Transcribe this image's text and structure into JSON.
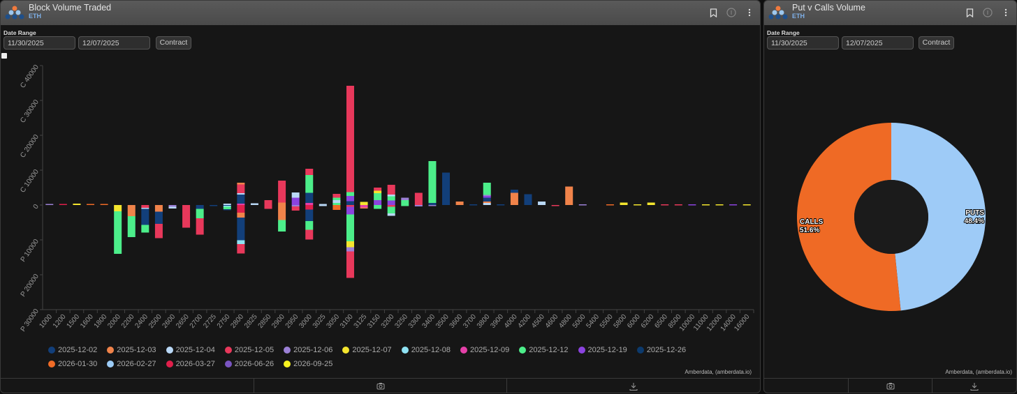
{
  "left_panel": {
    "title": "Block Volume Traded",
    "subtitle": "ETH",
    "date_range_label": "Date Range",
    "start_date": "11/30/2025",
    "end_date": "12/07/2025",
    "contract_button": "Contract",
    "credit": "Amberdata, (amberdata.io)",
    "icons": [
      "bookmark-icon",
      "info-icon",
      "more-vertical-icon",
      "camera-icon",
      "download-icon"
    ]
  },
  "right_panel": {
    "title": "Put v Calls Volume",
    "subtitle": "ETH",
    "date_range_label": "Date Range",
    "start_date": "11/30/2025",
    "end_date": "12/07/2025",
    "contract_button": "Contract",
    "credit": "Amberdata, (amberdata.io)"
  },
  "chart_data": [
    {
      "type": "bar",
      "stacked": true,
      "diverging": true,
      "ylim": [
        -30000,
        40000
      ],
      "yticks": [
        {
          "value": 40000,
          "label": "C 40000"
        },
        {
          "value": 30000,
          "label": "C 30000"
        },
        {
          "value": 20000,
          "label": "C 20000"
        },
        {
          "value": 10000,
          "label": "C 10000"
        },
        {
          "value": 0,
          "label": "0"
        },
        {
          "value": -10000,
          "label": "P 10000"
        },
        {
          "value": -20000,
          "label": "P 20000"
        },
        {
          "value": -30000,
          "label": "P 30000"
        }
      ],
      "categories": [
        "1000",
        "1200",
        "1500",
        "1600",
        "1800",
        "2000",
        "2200",
        "2400",
        "2500",
        "2600",
        "2650",
        "2700",
        "2725",
        "2750",
        "2800",
        "2825",
        "2850",
        "2900",
        "2950",
        "3000",
        "3025",
        "3050",
        "3100",
        "3125",
        "3150",
        "3200",
        "3250",
        "3300",
        "3400",
        "3500",
        "3600",
        "3700",
        "3800",
        "3900",
        "4000",
        "4200",
        "4500",
        "4600",
        "4800",
        "5000",
        "5400",
        "5500",
        "5800",
        "6000",
        "6200",
        "6500",
        "8500",
        "10000",
        "11000",
        "12000",
        "14000",
        "16000"
      ],
      "series": [
        {
          "name": "2025-12-02",
          "color": "#123f7a"
        },
        {
          "name": "2025-12-03",
          "color": "#f0834a"
        },
        {
          "name": "2025-12-04",
          "color": "#b9d8f6"
        },
        {
          "name": "2025-12-05",
          "color": "#e8385b"
        },
        {
          "name": "2025-12-06",
          "color": "#9b80d6"
        },
        {
          "name": "2025-12-07",
          "color": "#f4e52e"
        },
        {
          "name": "2025-12-08",
          "color": "#8fe2f3"
        },
        {
          "name": "2025-12-09",
          "color": "#e540a8"
        },
        {
          "name": "2025-12-12",
          "color": "#4cee8a"
        },
        {
          "name": "2025-12-19",
          "color": "#8b43df"
        },
        {
          "name": "2025-12-26",
          "color": "#0c3a6d"
        },
        {
          "name": "2026-01-30",
          "color": "#f06b26"
        },
        {
          "name": "2026-02-27",
          "color": "#9ccbf6"
        },
        {
          "name": "2026-03-27",
          "color": "#e01f4b"
        },
        {
          "name": "2026-06-26",
          "color": "#7a55c2"
        },
        {
          "name": "2026-09-25",
          "color": "#f7f21f"
        }
      ],
      "calls": {
        "1000": [
          [
            4,
            300
          ]
        ],
        "1200": [
          [
            13,
            300
          ]
        ],
        "1500": [
          [
            5,
            400
          ]
        ],
        "1600": [
          [
            11,
            300
          ]
        ],
        "1800": [
          [
            11,
            300
          ]
        ],
        "2750": [
          [
            2,
            400
          ]
        ],
        "2800": [
          [
            7,
            400
          ],
          [
            0,
            2600
          ],
          [
            2,
            400
          ],
          [
            3,
            2500
          ],
          [
            1,
            500
          ]
        ],
        "2825": [
          [
            2,
            500
          ]
        ],
        "2850": [
          [
            3,
            1400
          ]
        ],
        "2900": [
          [
            1,
            700
          ],
          [
            3,
            6300
          ]
        ],
        "2950": [
          [
            9,
            2100
          ],
          [
            2,
            1500
          ]
        ],
        "3000": [
          [
            7,
            600
          ],
          [
            0,
            2900
          ],
          [
            8,
            5100
          ],
          [
            3,
            1800
          ]
        ],
        "3025": [
          [
            2,
            300
          ]
        ],
        "3050": [
          [
            8,
            600
          ],
          [
            2,
            800
          ],
          [
            8,
            700
          ],
          [
            3,
            1100
          ]
        ],
        "3100": [
          [
            0,
            1100
          ],
          [
            9,
            1500
          ],
          [
            8,
            1100
          ],
          [
            3,
            30500
          ]
        ],
        "3125": [
          [
            5,
            900
          ]
        ],
        "3150": [
          [
            9,
            1400
          ],
          [
            8,
            2000
          ],
          [
            5,
            700
          ],
          [
            3,
            900
          ]
        ],
        "3200": [
          [
            9,
            1300
          ],
          [
            8,
            1200
          ],
          [
            2,
            500
          ],
          [
            3,
            2800
          ]
        ],
        "3250": [
          [
            8,
            1400
          ],
          [
            4,
            700
          ]
        ],
        "3300": [
          [
            3,
            3500
          ]
        ],
        "3400": [
          [
            0,
            600
          ],
          [
            8,
            12000
          ]
        ],
        "3500": [
          [
            0,
            9300
          ]
        ],
        "3600": [
          [
            1,
            1000
          ]
        ],
        "3700": [
          [
            0,
            200
          ]
        ],
        "3800": [
          [
            2,
            600
          ],
          [
            1,
            400
          ],
          [
            0,
            1100
          ],
          [
            9,
            500
          ],
          [
            4,
            300
          ],
          [
            8,
            3500
          ]
        ],
        "3900": [
          [
            0,
            200
          ]
        ],
        "4000": [
          [
            1,
            3500
          ],
          [
            0,
            900
          ]
        ],
        "4200": [
          [
            0,
            3100
          ]
        ],
        "4500": [
          [
            2,
            1000
          ]
        ],
        "4800": [
          [
            1,
            5300
          ]
        ],
        "5000": [
          [
            4,
            200
          ]
        ],
        "5500": [
          [
            11,
            200
          ]
        ],
        "5800": [
          [
            5,
            700
          ]
        ],
        "6000": [
          [
            5,
            200
          ]
        ],
        "6200": [
          [
            5,
            700
          ]
        ],
        "6500": [
          [
            3,
            200
          ]
        ],
        "8500": [
          [
            3,
            200
          ]
        ],
        "10000": [
          [
            9,
            200
          ]
        ],
        "11000": [
          [
            5,
            200
          ]
        ],
        "12000": [
          [
            5,
            200
          ]
        ],
        "14000": [
          [
            9,
            200
          ]
        ],
        "16000": [
          [
            5,
            200
          ]
        ]
      },
      "puts": {
        "2000": [
          [
            5,
            1800
          ],
          [
            8,
            12200
          ]
        ],
        "2200": [
          [
            1,
            3200
          ],
          [
            8,
            6000
          ]
        ],
        "2400": [
          [
            3,
            800
          ],
          [
            2,
            300
          ],
          [
            0,
            4600
          ],
          [
            8,
            2200
          ]
        ],
        "2500": [
          [
            1,
            1900
          ],
          [
            0,
            3500
          ],
          [
            3,
            4100
          ]
        ],
        "2600": [
          [
            4,
            500
          ],
          [
            2,
            500
          ]
        ],
        "2650": [
          [
            3,
            6500
          ]
        ],
        "2700": [
          [
            0,
            1100
          ],
          [
            8,
            2700
          ],
          [
            3,
            4700
          ]
        ],
        "2725": [
          [
            0,
            200
          ]
        ],
        "2750": [
          [
            0,
            200
          ],
          [
            6,
            300
          ],
          [
            8,
            700
          ],
          [
            0,
            300
          ]
        ],
        "2800": [
          [
            13,
            2200
          ],
          [
            1,
            1400
          ],
          [
            0,
            6500
          ],
          [
            6,
            1100
          ],
          [
            3,
            2700
          ]
        ],
        "2850": [
          [
            3,
            1100
          ]
        ],
        "2900": [
          [
            1,
            4300
          ],
          [
            8,
            3300
          ]
        ],
        "2950": [
          [
            4,
            400
          ],
          [
            3,
            1200
          ]
        ],
        "3000": [
          [
            13,
            1300
          ],
          [
            0,
            3300
          ],
          [
            8,
            2500
          ],
          [
            3,
            2800
          ]
        ],
        "3025": [
          [
            2,
            300
          ]
        ],
        "3050": [
          [
            11,
            1400
          ]
        ],
        "3100": [
          [
            3,
            500
          ],
          [
            9,
            2200
          ],
          [
            8,
            7700
          ],
          [
            5,
            1700
          ],
          [
            4,
            1200
          ],
          [
            3,
            7600
          ]
        ],
        "3125": [
          [
            7,
            700
          ],
          [
            1,
            300
          ]
        ],
        "3150": [
          [
            8,
            1100
          ]
        ],
        "3200": [
          [
            3,
            500
          ],
          [
            8,
            1900
          ],
          [
            2,
            700
          ]
        ],
        "3250": [
          [
            8,
            300
          ]
        ],
        "3300": [
          [
            4,
            400
          ]
        ],
        "3400": [
          [
            4,
            300
          ]
        ],
        "4600": [
          [
            3,
            200
          ]
        ]
      },
      "legend_position": "bottom",
      "grid": false
    },
    {
      "type": "pie",
      "donut": true,
      "slices": [
        {
          "label": "PUTS",
          "value": 48.4,
          "display": "48.4%",
          "color": "#9ecbf7"
        },
        {
          "label": "CALLS",
          "value": 51.6,
          "display": "51.6%",
          "color": "#ef6a25"
        }
      ]
    }
  ]
}
